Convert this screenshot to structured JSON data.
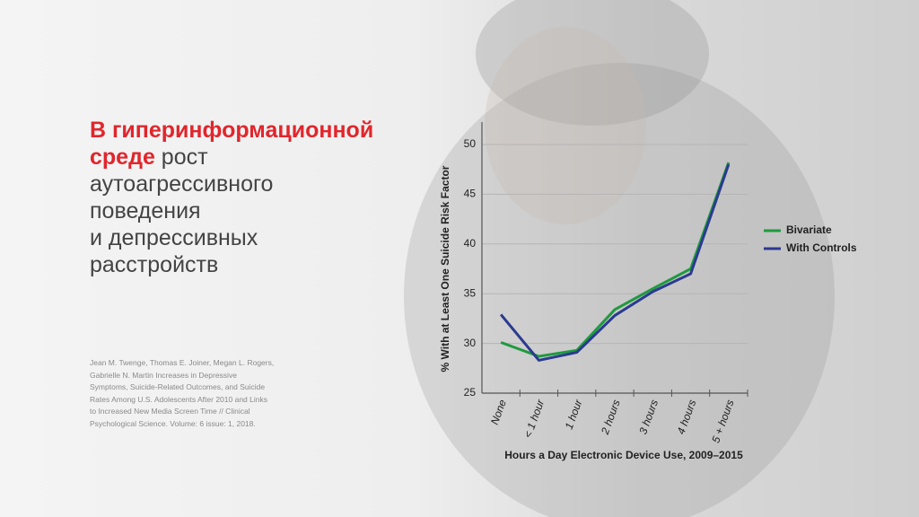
{
  "slide": {
    "heading_lines": [
      [
        {
          "text": "В гиперинформационной",
          "highlight": true
        }
      ],
      [
        {
          "text": "среде",
          "highlight": true
        },
        {
          "text": " рост",
          "highlight": false
        }
      ],
      [
        {
          "text": "аутоагрессивного",
          "highlight": false
        }
      ],
      [
        {
          "text": "поведения",
          "highlight": false
        }
      ],
      [
        {
          "text": "и депрессивных",
          "highlight": false
        }
      ],
      [
        {
          "text": "расстройств",
          "highlight": false
        }
      ]
    ],
    "citation_lines": [
      "Jean M. Twenge, Thomas E. Joiner, Megan L. Rogers,",
      "Gabrielle N. Martin Increases in Depressive",
      "Symptoms, Suicide-Related Outcomes, and Suicide",
      "Rates Among U.S. Adolescents After 2010 and Links",
      "to Increased New Media Screen Time // Clinical",
      "Psychological Science. Volume: 6 issue: 1, 2018."
    ]
  },
  "chart_data": {
    "type": "line",
    "x_label": "Hours a Day Electronic Device Use, 2009–2015",
    "y_label": "% With at Least One Suicide Risk Factor",
    "categories": [
      "None",
      "< 1 hour",
      "1 hour",
      "2 hours",
      "3 hours",
      "4 hours",
      "5 + hours"
    ],
    "series": [
      {
        "name": "Bivariate",
        "color": "#1f9a3f",
        "values": [
          30.1,
          28.7,
          29.3,
          33.4,
          35.5,
          37.5,
          48.2
        ]
      },
      {
        "name": "With Controls",
        "color": "#2b3a8f",
        "values": [
          32.9,
          28.3,
          29.1,
          32.8,
          35.2,
          37.0,
          48.0
        ]
      }
    ],
    "ylim": [
      25,
      50
    ],
    "yticks": [
      25,
      30,
      35,
      40,
      45,
      50
    ],
    "grid": true,
    "legend": "right"
  }
}
